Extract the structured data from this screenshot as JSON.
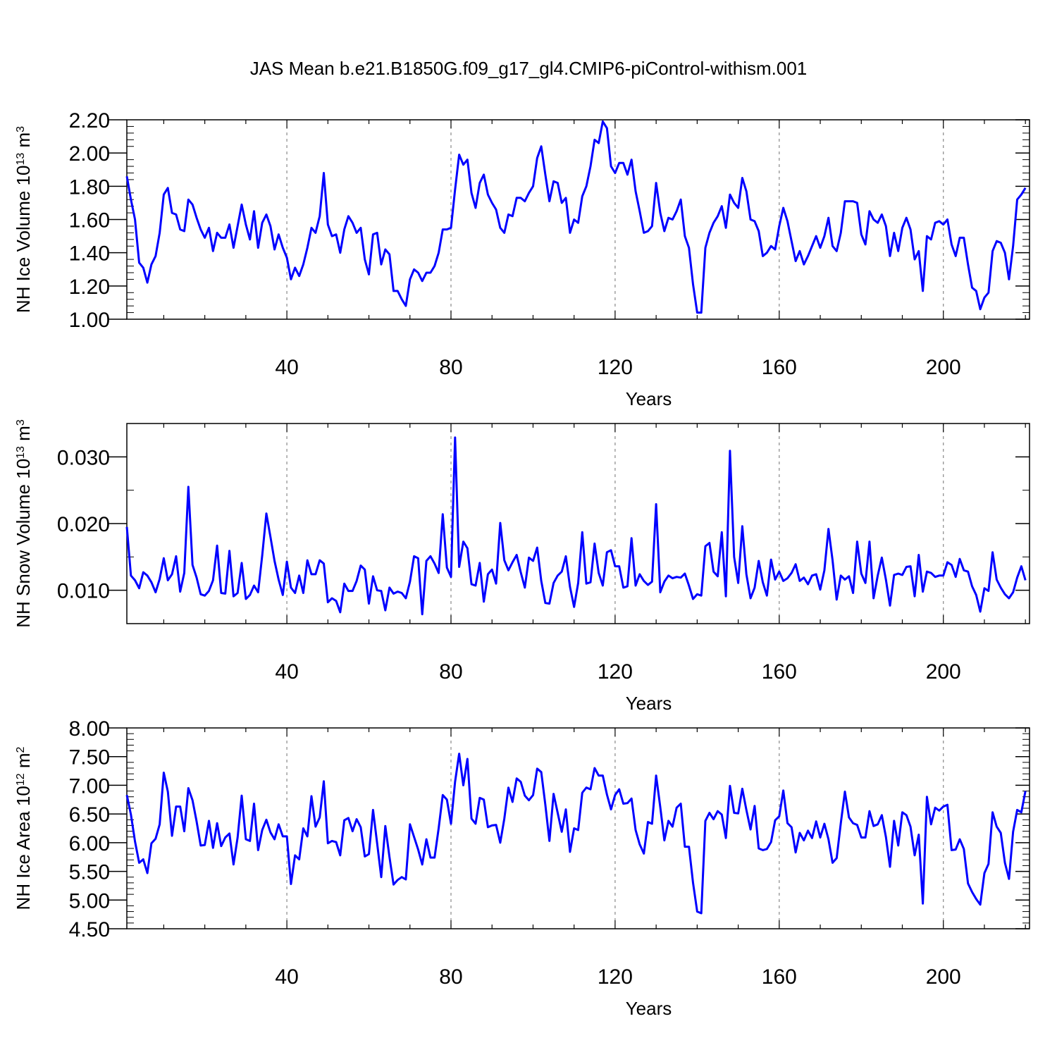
{
  "title": "JAS Mean b.e21.B1850G.f09_g17_gl4.CMIP6-piControl-withism.001",
  "chart_data": [
    {
      "type": "line",
      "ylabel": "NH Ice Volume 10",
      "ylabel_exp": "13",
      "ylabel_unit": " m",
      "ylabel_unit_exp": "3",
      "xlabel": "Years",
      "xlim": [
        1,
        221
      ],
      "ylim": [
        1.0,
        2.2
      ],
      "xticks": [
        40,
        80,
        120,
        160,
        200
      ],
      "xtick_labels": [
        "40",
        "80",
        "120",
        "160",
        "200"
      ],
      "yticks": [
        1.0,
        1.2,
        1.4,
        1.6,
        1.8,
        2.0,
        2.2
      ],
      "ytick_labels": [
        "1.00",
        "1.20",
        "1.40",
        "1.60",
        "1.80",
        "2.00",
        "2.20"
      ],
      "ytick_minor": 0.04,
      "grid": "dashed vertical at x ticks",
      "line_color": "#0000ff",
      "x_start": 1,
      "values": [
        1.86,
        1.72,
        1.6,
        1.34,
        1.31,
        1.22,
        1.33,
        1.38,
        1.52,
        1.75,
        1.79,
        1.64,
        1.63,
        1.54,
        1.53,
        1.72,
        1.69,
        1.61,
        1.54,
        1.49,
        1.55,
        1.41,
        1.52,
        1.49,
        1.49,
        1.57,
        1.43,
        1.56,
        1.69,
        1.57,
        1.48,
        1.65,
        1.43,
        1.58,
        1.63,
        1.56,
        1.42,
        1.51,
        1.43,
        1.37,
        1.24,
        1.31,
        1.26,
        1.33,
        1.43,
        1.55,
        1.52,
        1.62,
        1.88,
        1.57,
        1.5,
        1.51,
        1.4,
        1.54,
        1.62,
        1.58,
        1.52,
        1.55,
        1.36,
        1.27,
        1.51,
        1.52,
        1.33,
        1.42,
        1.39,
        1.17,
        1.17,
        1.12,
        1.08,
        1.24,
        1.3,
        1.28,
        1.23,
        1.28,
        1.28,
        1.32,
        1.4,
        1.54,
        1.54,
        1.55,
        1.78,
        1.99,
        1.93,
        1.96,
        1.76,
        1.67,
        1.82,
        1.87,
        1.75,
        1.7,
        1.66,
        1.55,
        1.52,
        1.63,
        1.62,
        1.73,
        1.73,
        1.71,
        1.76,
        1.8,
        1.97,
        2.04,
        1.87,
        1.71,
        1.83,
        1.82,
        1.7,
        1.73,
        1.52,
        1.6,
        1.58,
        1.74,
        1.8,
        1.92,
        2.08,
        2.06,
        2.19,
        2.15,
        1.92,
        1.88,
        1.94,
        1.94,
        1.87,
        1.96,
        1.77,
        1.65,
        1.52,
        1.53,
        1.56,
        1.82,
        1.64,
        1.53,
        1.61,
        1.6,
        1.65,
        1.72,
        1.5,
        1.43,
        1.21,
        1.04,
        1.04,
        1.43,
        1.52,
        1.58,
        1.62,
        1.68,
        1.55,
        1.75,
        1.7,
        1.67,
        1.85,
        1.77,
        1.6,
        1.59,
        1.53,
        1.38,
        1.4,
        1.44,
        1.42,
        1.56,
        1.67,
        1.59,
        1.47,
        1.35,
        1.41,
        1.33,
        1.38,
        1.44,
        1.5,
        1.43,
        1.5,
        1.61,
        1.44,
        1.41,
        1.52,
        1.71,
        1.71,
        1.71,
        1.7,
        1.51,
        1.45,
        1.65,
        1.6,
        1.58,
        1.63,
        1.56,
        1.38,
        1.52,
        1.41,
        1.55,
        1.61,
        1.54,
        1.36,
        1.41,
        1.17,
        1.5,
        1.48,
        1.58,
        1.59,
        1.57,
        1.6,
        1.45,
        1.38,
        1.49,
        1.49,
        1.33,
        1.19,
        1.17,
        1.06,
        1.13,
        1.16,
        1.41,
        1.47,
        1.46,
        1.4,
        1.24,
        1.44,
        1.72,
        1.75,
        1.79
      ]
    },
    {
      "type": "line",
      "ylabel": "NH Snow Volume 10",
      "ylabel_exp": "13",
      "ylabel_unit": " m",
      "ylabel_unit_exp": "3",
      "xlabel": "Years",
      "xlim": [
        1,
        221
      ],
      "ylim": [
        0.005,
        0.035
      ],
      "xticks": [
        40,
        80,
        120,
        160,
        200
      ],
      "xtick_labels": [
        "40",
        "80",
        "120",
        "160",
        "200"
      ],
      "yticks": [
        0.01,
        0.02,
        0.03
      ],
      "ytick_labels": [
        "0.010",
        "0.020",
        "0.030"
      ],
      "ytick_minor": 0.005,
      "grid": "dashed vertical at x ticks",
      "line_color": "#0000ff",
      "x_start": 1,
      "values": [
        0.0195,
        0.0122,
        0.0115,
        0.0103,
        0.0127,
        0.0122,
        0.0112,
        0.0097,
        0.0117,
        0.0148,
        0.0115,
        0.0124,
        0.0151,
        0.0098,
        0.0126,
        0.0255,
        0.0138,
        0.0119,
        0.0094,
        0.0092,
        0.0099,
        0.0115,
        0.0167,
        0.0096,
        0.0095,
        0.0159,
        0.0091,
        0.0096,
        0.0141,
        0.0087,
        0.0093,
        0.0107,
        0.0097,
        0.0152,
        0.0215,
        0.018,
        0.0144,
        0.0116,
        0.0093,
        0.0143,
        0.0104,
        0.0096,
        0.0122,
        0.0096,
        0.0145,
        0.0124,
        0.0124,
        0.0145,
        0.014,
        0.0082,
        0.0088,
        0.0084,
        0.0067,
        0.011,
        0.0099,
        0.0099,
        0.0114,
        0.0137,
        0.0131,
        0.008,
        0.0121,
        0.01,
        0.0099,
        0.007,
        0.0104,
        0.0095,
        0.0098,
        0.0096,
        0.0088,
        0.0113,
        0.0151,
        0.0148,
        0.0064,
        0.0144,
        0.0151,
        0.014,
        0.0126,
        0.0214,
        0.0134,
        0.012,
        0.0329,
        0.0135,
        0.0173,
        0.0163,
        0.0109,
        0.0107,
        0.0141,
        0.0083,
        0.0124,
        0.0131,
        0.011,
        0.0201,
        0.0145,
        0.013,
        0.0142,
        0.0153,
        0.0127,
        0.0104,
        0.0149,
        0.0144,
        0.0164,
        0.0114,
        0.0081,
        0.008,
        0.0111,
        0.0122,
        0.0128,
        0.0151,
        0.0105,
        0.0075,
        0.0111,
        0.0187,
        0.011,
        0.0112,
        0.017,
        0.0126,
        0.0107,
        0.0157,
        0.016,
        0.0136,
        0.0136,
        0.0104,
        0.0106,
        0.0178,
        0.0107,
        0.0124,
        0.0114,
        0.0108,
        0.0113,
        0.0229,
        0.0097,
        0.0113,
        0.0122,
        0.0118,
        0.012,
        0.0119,
        0.0125,
        0.0107,
        0.0087,
        0.0094,
        0.0092,
        0.0166,
        0.0171,
        0.0128,
        0.0121,
        0.0187,
        0.0091,
        0.0309,
        0.015,
        0.0111,
        0.0196,
        0.0124,
        0.0088,
        0.0104,
        0.0144,
        0.0112,
        0.0092,
        0.0146,
        0.0116,
        0.0128,
        0.0114,
        0.0118,
        0.0126,
        0.0139,
        0.0114,
        0.0119,
        0.0109,
        0.0122,
        0.0124,
        0.0101,
        0.013,
        0.0192,
        0.0145,
        0.0086,
        0.0122,
        0.0116,
        0.0121,
        0.0096,
        0.0173,
        0.0125,
        0.0111,
        0.0173,
        0.0088,
        0.0122,
        0.0149,
        0.0116,
        0.0077,
        0.0123,
        0.0125,
        0.0123,
        0.0135,
        0.0136,
        0.0091,
        0.0153,
        0.0098,
        0.0128,
        0.0126,
        0.012,
        0.0122,
        0.0122,
        0.0142,
        0.0138,
        0.012,
        0.0147,
        0.013,
        0.0128,
        0.0106,
        0.0093,
        0.0068,
        0.0103,
        0.0099,
        0.0157,
        0.0116,
        0.0104,
        0.0094,
        0.0088,
        0.0097,
        0.0119,
        0.0136,
        0.0115
      ]
    },
    {
      "type": "line",
      "ylabel": "NH Ice Area 10",
      "ylabel_exp": "12",
      "ylabel_unit": " m",
      "ylabel_unit_exp": "2",
      "xlabel": "Years",
      "xlim": [
        1,
        221
      ],
      "ylim": [
        4.5,
        8.0
      ],
      "xticks": [
        40,
        80,
        120,
        160,
        200
      ],
      "xtick_labels": [
        "40",
        "80",
        "120",
        "160",
        "200"
      ],
      "yticks": [
        4.5,
        5.0,
        5.5,
        6.0,
        6.5,
        7.0,
        7.5,
        8.0
      ],
      "ytick_labels": [
        "4.50",
        "5.00",
        "5.50",
        "6.00",
        "6.50",
        "7.00",
        "7.50",
        "8.00"
      ],
      "ytick_minor": 0.1,
      "grid": "dashed vertical at x ticks",
      "line_color": "#0000ff",
      "x_start": 1,
      "values": [
        6.83,
        6.49,
        6.02,
        5.65,
        5.71,
        5.47,
        5.99,
        6.07,
        6.32,
        7.22,
        6.89,
        6.12,
        6.63,
        6.63,
        6.2,
        6.95,
        6.74,
        6.37,
        5.95,
        5.96,
        6.38,
        5.91,
        6.34,
        5.94,
        6.09,
        6.16,
        5.62,
        6.09,
        6.82,
        6.06,
        6.03,
        6.68,
        5.87,
        6.22,
        6.4,
        6.18,
        6.06,
        6.32,
        6.11,
        6.11,
        5.28,
        5.78,
        5.71,
        6.25,
        6.11,
        6.81,
        6.28,
        6.44,
        7.07,
        5.99,
        6.03,
        6.01,
        5.78,
        6.39,
        6.43,
        6.2,
        6.41,
        6.27,
        5.76,
        5.8,
        6.57,
        5.99,
        5.4,
        6.29,
        5.75,
        5.27,
        5.35,
        5.4,
        5.36,
        6.32,
        6.1,
        5.88,
        5.62,
        6.06,
        5.74,
        5.74,
        6.25,
        6.83,
        6.75,
        6.33,
        7.06,
        7.55,
        7.0,
        7.46,
        6.42,
        6.33,
        6.78,
        6.75,
        6.27,
        6.3,
        6.31,
        6.0,
        6.42,
        6.96,
        6.71,
        7.12,
        7.06,
        6.82,
        6.74,
        6.83,
        7.29,
        7.23,
        6.66,
        6.03,
        6.85,
        6.52,
        6.19,
        6.58,
        5.84,
        6.25,
        6.22,
        6.87,
        6.96,
        6.93,
        7.3,
        7.17,
        7.17,
        6.84,
        6.58,
        6.83,
        6.93,
        6.68,
        6.69,
        6.77,
        6.22,
        5.97,
        5.81,
        6.36,
        6.33,
        7.17,
        6.62,
        6.04,
        6.38,
        6.28,
        6.61,
        6.68,
        5.93,
        5.93,
        5.3,
        4.8,
        4.77,
        6.38,
        6.52,
        6.41,
        6.55,
        6.49,
        6.08,
        6.99,
        6.52,
        6.51,
        6.94,
        6.57,
        6.23,
        6.64,
        5.9,
        5.87,
        5.89,
        6.01,
        6.39,
        6.46,
        6.91,
        6.34,
        6.27,
        5.83,
        6.17,
        6.04,
        6.21,
        6.08,
        6.37,
        6.09,
        6.33,
        6.06,
        5.65,
        5.73,
        6.34,
        6.89,
        6.44,
        6.34,
        6.31,
        6.09,
        6.09,
        6.55,
        6.29,
        6.32,
        6.48,
        6.1,
        5.58,
        6.38,
        5.95,
        6.53,
        6.48,
        6.28,
        5.78,
        6.14,
        4.94,
        6.8,
        6.32,
        6.61,
        6.56,
        6.63,
        6.66,
        5.87,
        5.88,
        6.06,
        5.89,
        5.29,
        5.14,
        5.02,
        4.92,
        5.47,
        5.63,
        6.53,
        6.28,
        6.17,
        5.65,
        5.37,
        6.19,
        6.57,
        6.53,
        6.9
      ]
    }
  ]
}
